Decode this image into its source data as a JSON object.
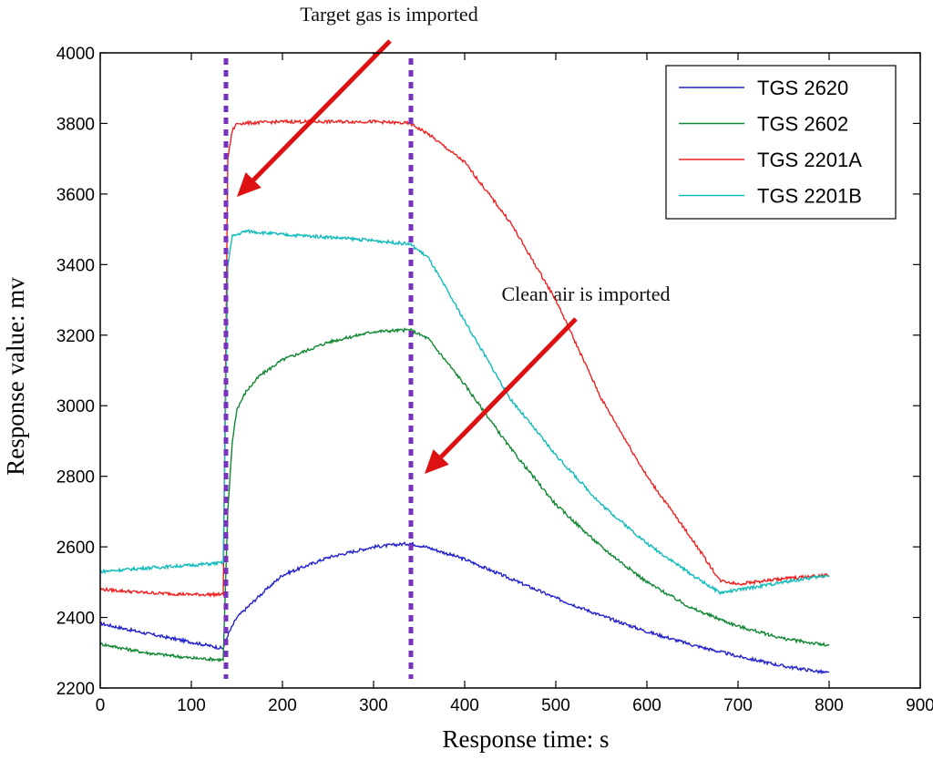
{
  "chart_data": {
    "type": "line",
    "title": "",
    "xlabel": "Response time: s",
    "ylabel": "Response value: mv",
    "xlim": [
      0,
      900
    ],
    "ylim": [
      2200,
      4000
    ],
    "xticks": [
      0,
      100,
      200,
      300,
      400,
      500,
      600,
      700,
      800,
      900
    ],
    "yticks": [
      2200,
      2400,
      2600,
      2800,
      3000,
      3200,
      3400,
      3600,
      3800,
      4000
    ],
    "grid": false,
    "legend_position": "top-right",
    "series": [
      {
        "name": "TGS 2620",
        "color": "#2222cc",
        "x": [
          0,
          50,
          100,
          135,
          140,
          150,
          175,
          200,
          250,
          300,
          340,
          360,
          400,
          450,
          500,
          550,
          600,
          650,
          700,
          750,
          800
        ],
        "y": [
          2383,
          2355,
          2330,
          2312,
          2350,
          2400,
          2462,
          2520,
          2570,
          2600,
          2610,
          2598,
          2565,
          2510,
          2455,
          2405,
          2360,
          2322,
          2290,
          2262,
          2242
        ]
      },
      {
        "name": "TGS 2602",
        "color": "#118833",
        "x": [
          0,
          50,
          100,
          135,
          140,
          145,
          150,
          160,
          175,
          200,
          250,
          300,
          340,
          360,
          400,
          450,
          500,
          550,
          600,
          650,
          700,
          750,
          800
        ],
        "y": [
          2325,
          2300,
          2285,
          2280,
          2700,
          2900,
          2990,
          3040,
          3085,
          3130,
          3180,
          3210,
          3215,
          3190,
          3060,
          2880,
          2720,
          2600,
          2500,
          2425,
          2375,
          2340,
          2320
        ]
      },
      {
        "name": "TGS 2201A",
        "color": "#ee2222",
        "x": [
          0,
          50,
          100,
          135,
          140,
          145,
          150,
          200,
          250,
          300,
          340,
          360,
          400,
          450,
          500,
          550,
          600,
          650,
          680,
          700,
          750,
          800
        ],
        "y": [
          2480,
          2470,
          2465,
          2465,
          3700,
          3780,
          3800,
          3805,
          3805,
          3805,
          3800,
          3770,
          3690,
          3520,
          3300,
          3020,
          2800,
          2620,
          2505,
          2495,
          2510,
          2520
        ]
      },
      {
        "name": "TGS 2201B",
        "color": "#11bbbb",
        "x": [
          0,
          50,
          100,
          135,
          140,
          145,
          160,
          200,
          250,
          300,
          340,
          360,
          380,
          400,
          450,
          500,
          550,
          600,
          650,
          680,
          700,
          750,
          800
        ],
        "y": [
          2530,
          2540,
          2548,
          2555,
          3400,
          3480,
          3495,
          3485,
          3478,
          3468,
          3458,
          3420,
          3330,
          3240,
          3020,
          2860,
          2720,
          2610,
          2520,
          2470,
          2478,
          2500,
          2520
        ]
      }
    ],
    "vlines": [
      {
        "x": 138,
        "color": "#7733bb",
        "style": "dotted"
      },
      {
        "x": 341,
        "color": "#7733bb",
        "style": "dotted"
      }
    ],
    "annotations": [
      {
        "text": "Target gas is imported",
        "color": "#111111"
      },
      {
        "text": "Clean air is imported",
        "color": "#111111"
      }
    ],
    "arrow_color": "#dd1111"
  }
}
